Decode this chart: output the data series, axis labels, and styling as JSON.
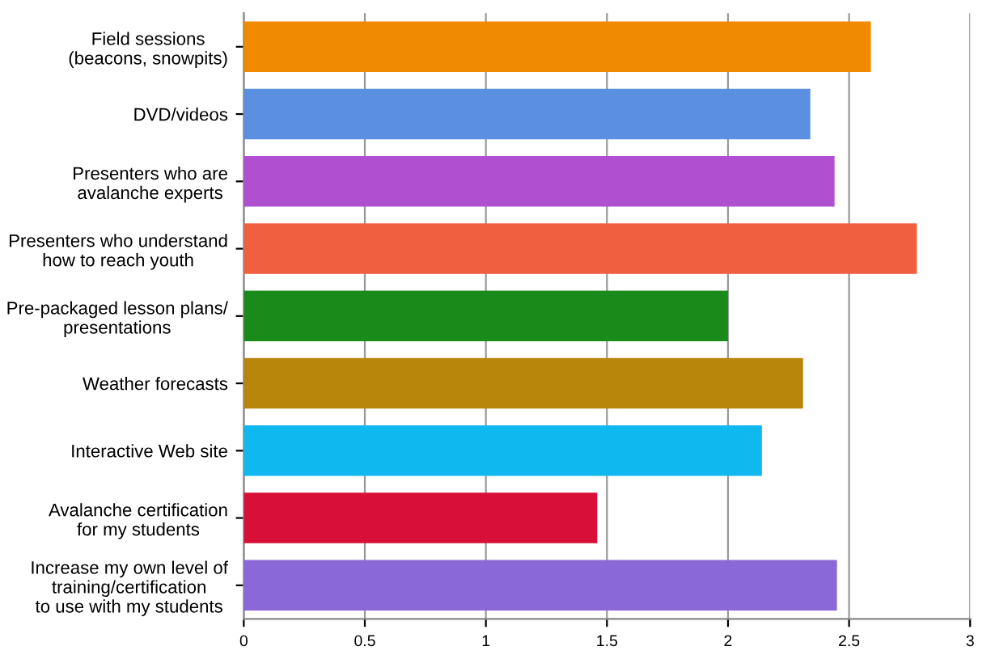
{
  "chart_data": {
    "type": "bar",
    "orientation": "horizontal",
    "categories": [
      "Field sessions\n(beacons, snowpits)",
      "DVD/videos",
      "Presenters who are\navalanche experts",
      "Presenters who understand\nhow to reach youth",
      "Pre-packaged lesson plans/\npresentations",
      "Weather forecasts",
      "Interactive Web site",
      "Avalanche certification\nfor my students",
      "Increase my own level of\ntraining/certification\nto use with my students"
    ],
    "values": [
      2.59,
      2.34,
      2.44,
      2.78,
      2.0,
      2.31,
      2.14,
      1.46,
      2.45
    ],
    "colors": [
      "#f08a00",
      "#5b8fe0",
      "#b050d0",
      "#f0603f",
      "#1a8a1a",
      "#b8860b",
      "#10b8f0",
      "#d81038",
      "#8a68d8"
    ],
    "xlim": [
      0,
      3
    ],
    "xticks": [
      0,
      0.5,
      1,
      1.5,
      2,
      2.5,
      3
    ],
    "grid": "x",
    "legend": false
  }
}
